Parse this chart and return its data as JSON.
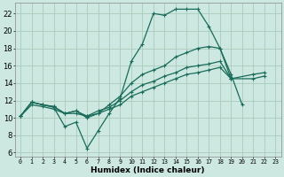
{
  "title": "",
  "xlabel": "Humidex (Indice chaleur)",
  "ylabel": "",
  "bg_color": "#cce8e0",
  "grid_color": "#aaccbb",
  "line_color": "#1a6b5a",
  "xlim": [
    -0.5,
    23.5
  ],
  "ylim": [
    5.5,
    23.2
  ],
  "yticks": [
    6,
    8,
    10,
    12,
    14,
    16,
    18,
    20,
    22
  ],
  "xticks": [
    0,
    1,
    2,
    3,
    4,
    5,
    6,
    7,
    8,
    9,
    10,
    11,
    12,
    13,
    14,
    15,
    16,
    17,
    18,
    19,
    20,
    21,
    22,
    23
  ],
  "series": [
    {
      "x": [
        0,
        1,
        2,
        3,
        4,
        5,
        6,
        7,
        8,
        9,
        10,
        11,
        12,
        13,
        14,
        15,
        16,
        17,
        18,
        19,
        20
      ],
      "y": [
        10.2,
        11.8,
        11.5,
        11.2,
        9.0,
        9.5,
        6.5,
        8.5,
        10.5,
        12.3,
        16.5,
        18.5,
        22.0,
        21.8,
        22.5,
        22.5,
        22.5,
        20.5,
        18.0,
        15.0,
        11.5
      ]
    },
    {
      "x": [
        0,
        1,
        2,
        3,
        4,
        5,
        6,
        7,
        8,
        9,
        10,
        11,
        12,
        13,
        14,
        15,
        16,
        17,
        18,
        19,
        21,
        22
      ],
      "y": [
        10.2,
        11.8,
        11.5,
        11.3,
        10.5,
        10.8,
        10.0,
        10.5,
        11.5,
        12.5,
        14.0,
        15.0,
        15.5,
        16.0,
        17.0,
        17.5,
        18.0,
        18.2,
        18.0,
        14.5,
        15.0,
        15.2
      ]
    },
    {
      "x": [
        0,
        1,
        2,
        3,
        4,
        5,
        6,
        7,
        8,
        9,
        10,
        11,
        12,
        13,
        14,
        15,
        16,
        17,
        18,
        19,
        21,
        22
      ],
      "y": [
        10.2,
        11.8,
        11.5,
        11.3,
        10.5,
        10.8,
        10.2,
        10.8,
        11.2,
        12.0,
        13.0,
        13.8,
        14.2,
        14.8,
        15.2,
        15.8,
        16.0,
        16.2,
        16.5,
        14.5,
        14.5,
        14.8
      ]
    },
    {
      "x": [
        0,
        1,
        2,
        3,
        4,
        5,
        6,
        7,
        8,
        9,
        10,
        11,
        12,
        13,
        14,
        15,
        16,
        17,
        18,
        19
      ],
      "y": [
        10.2,
        11.5,
        11.3,
        11.0,
        10.5,
        10.5,
        10.2,
        10.5,
        11.0,
        11.5,
        12.5,
        13.0,
        13.5,
        14.0,
        14.5,
        15.0,
        15.2,
        15.5,
        15.8,
        14.5
      ]
    }
  ],
  "xlabel_fontsize": 6.5,
  "tick_fontsize_x": 4.8,
  "tick_fontsize_y": 6.0,
  "linewidth": 0.9,
  "markersize": 3.5
}
